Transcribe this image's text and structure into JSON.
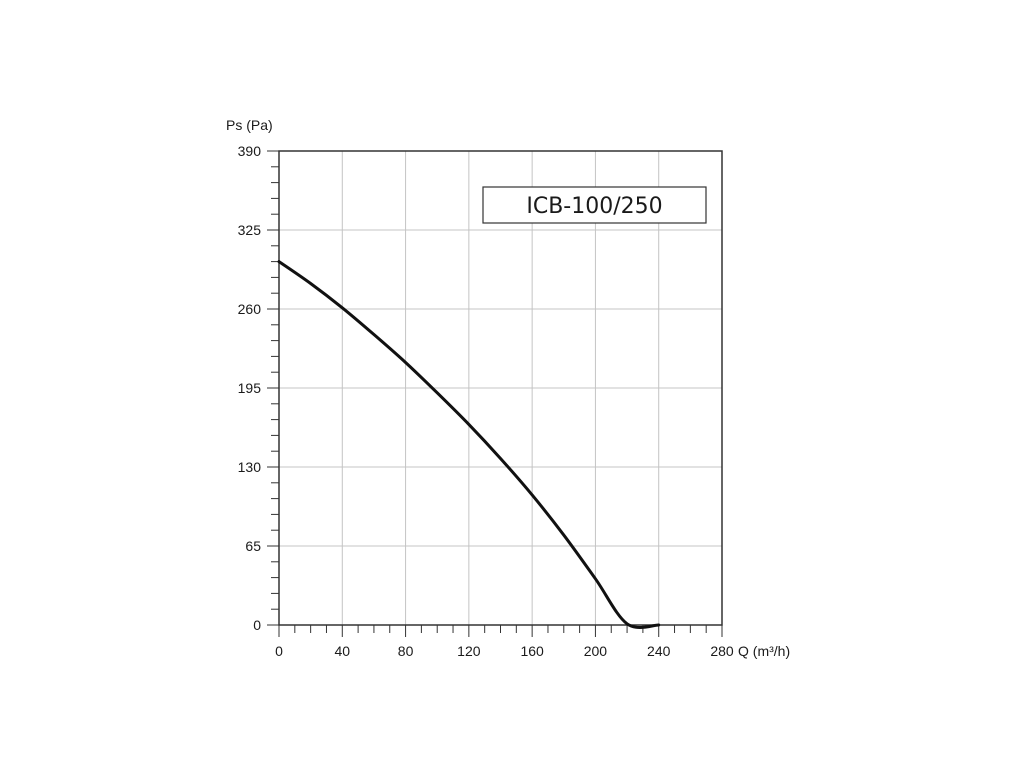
{
  "chart_data": {
    "type": "line",
    "title": "",
    "ylabel": "Ps (Pa)",
    "xlabel": "Q (m³/h)",
    "xlim": [
      0,
      280
    ],
    "ylim": [
      0,
      390
    ],
    "x_ticks": [
      0,
      40,
      80,
      120,
      160,
      200,
      240,
      280
    ],
    "y_ticks": [
      0,
      65,
      130,
      195,
      260,
      325,
      390
    ],
    "grid": true,
    "legend_placement": "top-right",
    "series": [
      {
        "name": "ICB-100/250",
        "color": "#111111",
        "x": [
          0,
          20,
          40,
          60,
          80,
          100,
          120,
          140,
          160,
          180,
          200,
          220,
          240
        ],
        "y": [
          299,
          281,
          261,
          239,
          216,
          191,
          165,
          137,
          107,
          74,
          38,
          1,
          0
        ]
      }
    ]
  }
}
